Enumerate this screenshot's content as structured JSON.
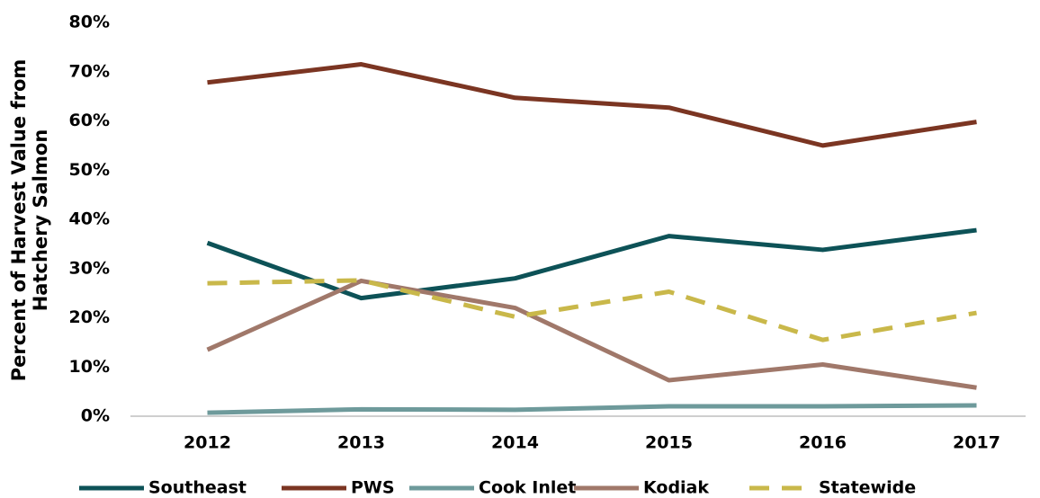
{
  "chart_data": {
    "type": "line",
    "ylabel": [
      "Percent of Harvest Value from",
      "Hatchery Salmon"
    ],
    "categories": [
      "2012",
      "2013",
      "2014",
      "2015",
      "2016",
      "2017"
    ],
    "series": [
      {
        "name": "Southeast",
        "color": "#0d5257",
        "values": [
          35.2,
          24,
          28,
          36.6,
          33.8,
          37.8
        ]
      },
      {
        "name": "PWS",
        "color": "#7b3522",
        "values": [
          67.8,
          71.5,
          64.7,
          62.7,
          55,
          59.8
        ]
      },
      {
        "name": "Cook Inlet",
        "color": "#6e9a9b",
        "values": [
          0.7,
          1.4,
          1.3,
          2,
          2,
          2.2
        ]
      },
      {
        "name": "Kodiak",
        "color": "#a0786a",
        "values": [
          13.5,
          27.5,
          22,
          7.3,
          10.5,
          5.8
        ]
      },
      {
        "name": "Statewide",
        "color": "#c9b84a",
        "dashed": true,
        "values": [
          27,
          27.6,
          20.2,
          25.3,
          15.5,
          21
        ]
      }
    ],
    "ylim": [
      0,
      80
    ],
    "yticks": [
      {
        "value": 0,
        "label": "0%"
      },
      {
        "value": 10,
        "label": "10%"
      },
      {
        "value": 20,
        "label": "20%"
      },
      {
        "value": 30,
        "label": "30%"
      },
      {
        "value": 40,
        "label": "40%"
      },
      {
        "value": 50,
        "label": "50%"
      },
      {
        "value": 60,
        "label": "60%"
      },
      {
        "value": 70,
        "label": "70%"
      },
      {
        "value": 80,
        "label": "80%"
      }
    ],
    "grid": false,
    "legend": "bottom"
  }
}
